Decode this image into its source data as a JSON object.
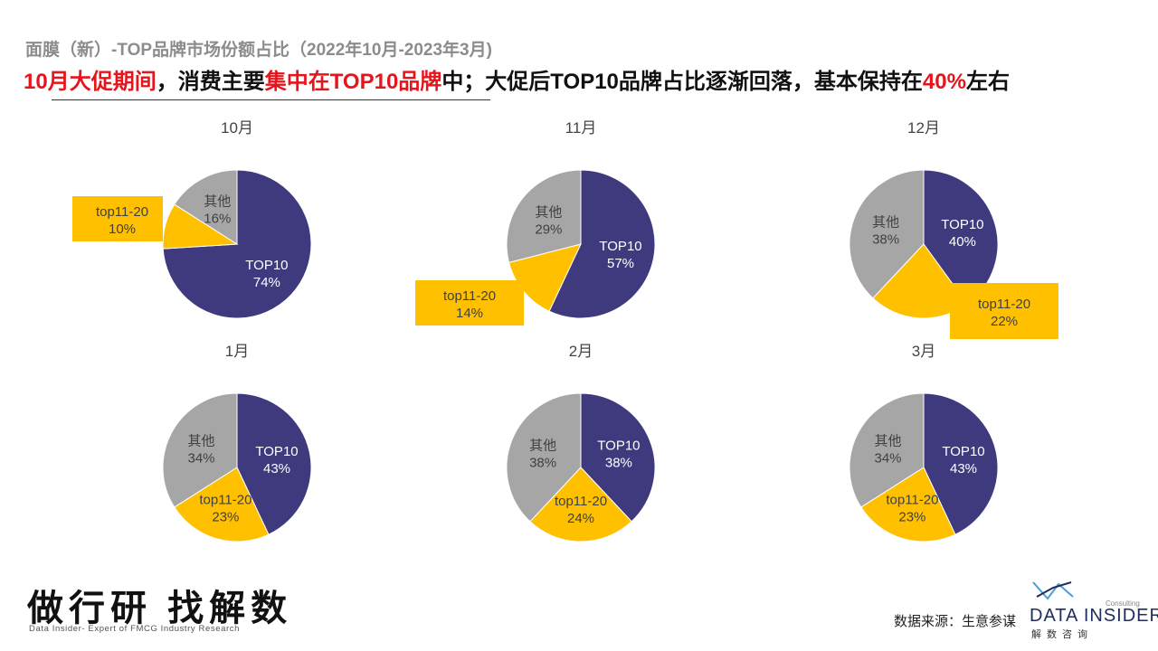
{
  "header": {
    "subtitle": "面膜（新）-TOP品牌市场份额占比（2022年10月-2023年3月)",
    "headline": [
      {
        "text": "10月大促期间",
        "highlight": true
      },
      {
        "text": "，消费主要",
        "highlight": false
      },
      {
        "text": "集中在TOP10品牌",
        "highlight": true
      },
      {
        "text": "中；大促后TOP10品牌占比逐渐回落，基本保持在",
        "highlight": false
      },
      {
        "text": "40%",
        "highlight": true
      },
      {
        "text": "左右",
        "highlight": false
      }
    ]
  },
  "colors": {
    "top10": "#3f3a7e",
    "top11_20": "#ffc000",
    "other": "#a6a6a6",
    "highlight": "#e8141c"
  },
  "chart_data": [
    {
      "type": "pie",
      "title": "10月",
      "slices": [
        {
          "label": "TOP10",
          "value": 74,
          "value_label": "74%"
        },
        {
          "label": "top11-20",
          "value": 10,
          "value_label": "10%"
        },
        {
          "label": "其他",
          "value": 16,
          "value_label": "16%"
        }
      ]
    },
    {
      "type": "pie",
      "title": "11月",
      "slices": [
        {
          "label": "TOP10",
          "value": 57,
          "value_label": "57%"
        },
        {
          "label": "top11-20",
          "value": 14,
          "value_label": "14%"
        },
        {
          "label": "其他",
          "value": 29,
          "value_label": "29%"
        }
      ]
    },
    {
      "type": "pie",
      "title": "12月",
      "slices": [
        {
          "label": "TOP10",
          "value": 40,
          "value_label": "40%"
        },
        {
          "label": "top11-20",
          "value": 22,
          "value_label": "22%"
        },
        {
          "label": "其他",
          "value": 38,
          "value_label": "38%"
        }
      ]
    },
    {
      "type": "pie",
      "title": "1月",
      "slices": [
        {
          "label": "TOP10",
          "value": 43,
          "value_label": "43%"
        },
        {
          "label": "top11-20",
          "value": 23,
          "value_label": "23%"
        },
        {
          "label": "其他",
          "value": 34,
          "value_label": "34%"
        }
      ]
    },
    {
      "type": "pie",
      "title": "2月",
      "slices": [
        {
          "label": "TOP10",
          "value": 38,
          "value_label": "38%"
        },
        {
          "label": "top11-20",
          "value": 24,
          "value_label": "24%"
        },
        {
          "label": "其他",
          "value": 38,
          "value_label": "38%"
        }
      ]
    },
    {
      "type": "pie",
      "title": "3月",
      "slices": [
        {
          "label": "TOP10",
          "value": 43,
          "value_label": "43%"
        },
        {
          "label": "top11-20",
          "value": 23,
          "value_label": "23%"
        },
        {
          "label": "其他",
          "value": 34,
          "value_label": "34%"
        }
      ]
    }
  ],
  "footer": {
    "brand": "做行研 找解数",
    "brand_tagline": "Data Insider- Expert of FMCG Industry Research",
    "source": "数据来源：生意参谋",
    "logo_name": "DATA INSIDER",
    "logo_cn": "解数咨询",
    "logo_consulting": "Consulting"
  }
}
